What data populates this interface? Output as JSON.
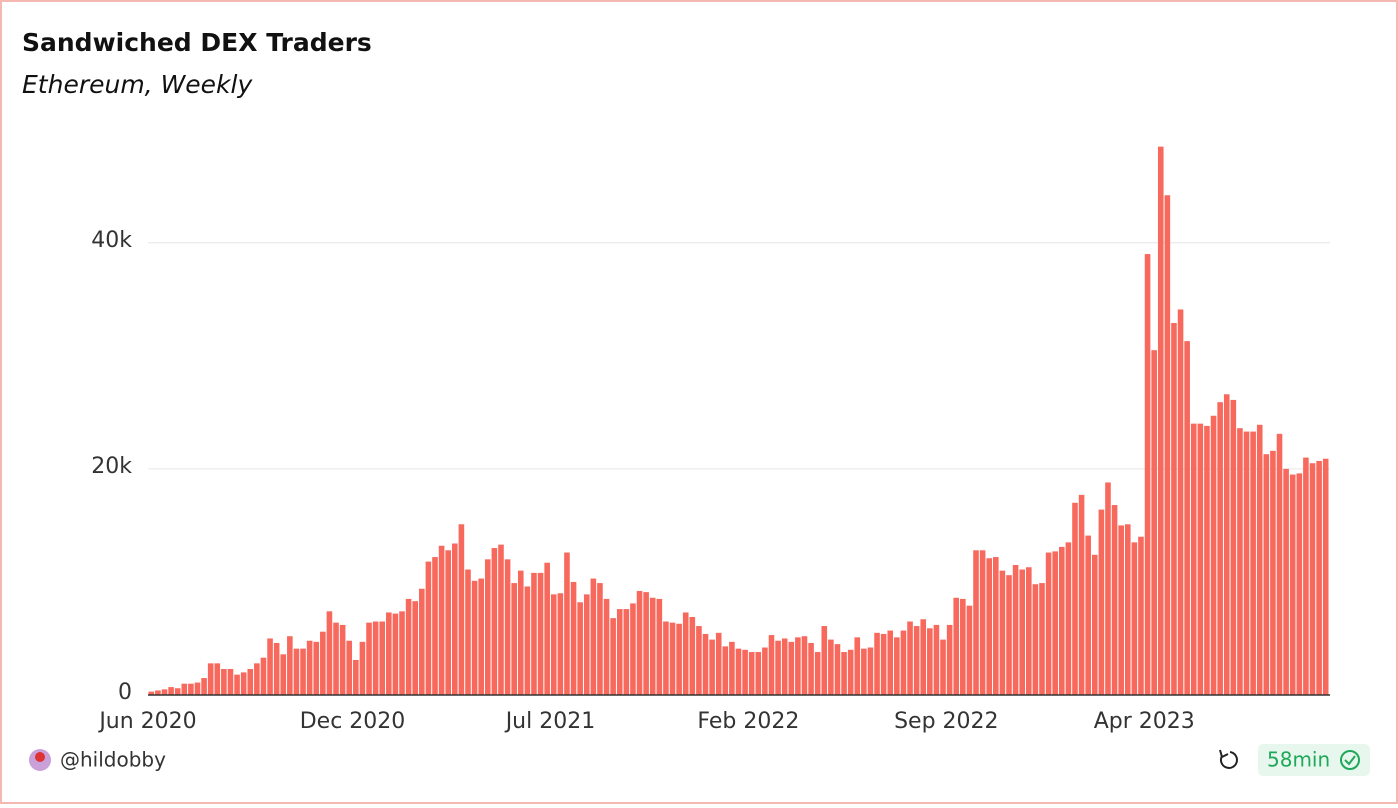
{
  "chart_data": {
    "type": "bar",
    "title": "Sandwiched DEX Traders",
    "subtitle": "Ethereum, Weekly",
    "categories": [
      "Jun 2020",
      null,
      null,
      null,
      null,
      null,
      null,
      null,
      null,
      null,
      null,
      null,
      null,
      null,
      null,
      null,
      null,
      null,
      null,
      null,
      null,
      null,
      null,
      null,
      null,
      null,
      null,
      null,
      null,
      null,
      null,
      "Dec 2020",
      null,
      null,
      null,
      null,
      null,
      null,
      null,
      null,
      null,
      null,
      null,
      null,
      null,
      null,
      null,
      null,
      null,
      null,
      null,
      null,
      null,
      null,
      null,
      null,
      null,
      null,
      null,
      null,
      null,
      "Jul 2021",
      null,
      null,
      null,
      null,
      null,
      null,
      null,
      null,
      null,
      null,
      null,
      null,
      null,
      null,
      null,
      null,
      null,
      null,
      null,
      null,
      null,
      null,
      null,
      null,
      null,
      null,
      null,
      null,
      null,
      "Feb 2022",
      null,
      null,
      null,
      null,
      null,
      null,
      null,
      null,
      null,
      null,
      null,
      null,
      null,
      null,
      null,
      null,
      null,
      null,
      null,
      null,
      null,
      null,
      null,
      null,
      null,
      null,
      null,
      null,
      null,
      "Sep 2022",
      null,
      null,
      null,
      null,
      null,
      null,
      null,
      null,
      null,
      null,
      null,
      null,
      null,
      null,
      null,
      null,
      null,
      null,
      null,
      null,
      null,
      null,
      null,
      null,
      null,
      null,
      null,
      null,
      null,
      "Apr 2023",
      null,
      null,
      null,
      null,
      null,
      null,
      null,
      null,
      null,
      null,
      null,
      null,
      null,
      null,
      null,
      null,
      null,
      null,
      null,
      null,
      null,
      null,
      null,
      null,
      null,
      null,
      null
    ],
    "values": [
      300,
      400,
      500,
      700,
      600,
      1000,
      1000,
      1100,
      1500,
      2800,
      2800,
      2300,
      2300,
      1800,
      2000,
      2300,
      2800,
      3300,
      5000,
      4600,
      3600,
      5200,
      4100,
      4100,
      4800,
      4700,
      5600,
      7400,
      6400,
      6200,
      4800,
      3100,
      4700,
      6400,
      6500,
      6500,
      7300,
      7200,
      7400,
      8500,
      8300,
      9400,
      11800,
      12200,
      13200,
      12800,
      13400,
      15100,
      11100,
      10100,
      10300,
      12000,
      13000,
      13300,
      12000,
      9900,
      11000,
      9600,
      10800,
      10800,
      11700,
      8900,
      9000,
      12600,
      10000,
      8200,
      8900,
      10300,
      9900,
      8500,
      6800,
      7600,
      7600,
      8100,
      9200,
      9100,
      8600,
      8500,
      6500,
      6400,
      6300,
      7300,
      6900,
      6100,
      5400,
      4900,
      5500,
      4300,
      4700,
      4100,
      4000,
      3800,
      3800,
      4200,
      5300,
      4800,
      5000,
      4700,
      5100,
      5200,
      4600,
      3800,
      6100,
      4900,
      4500,
      3800,
      4000,
      5100,
      4100,
      4200,
      5500,
      5400,
      5700,
      5100,
      5700,
      6500,
      6100,
      6700,
      5900,
      6200,
      4900,
      6200,
      8600,
      8500,
      7900,
      12800,
      12800,
      12100,
      12200,
      11000,
      10600,
      11500,
      11100,
      11300,
      9800,
      9900,
      12600,
      12700,
      13100,
      13500,
      17000,
      17700,
      14100,
      12400,
      16400,
      18800,
      16800,
      15000,
      15100,
      13500,
      14000,
      39000,
      30500,
      48500,
      44200,
      32900,
      34100,
      31300,
      24000,
      24000,
      23800,
      24700,
      25900,
      26600,
      26100,
      23600,
      23300,
      23300,
      23900,
      21300,
      21600,
      23100,
      20000,
      19500,
      19600,
      21000,
      20500,
      20700,
      20900
    ],
    "color": "#f8695d",
    "ylim": [
      0,
      49000
    ],
    "yticks": [
      0,
      {
        "value": 20000,
        "label": "20k"
      },
      {
        "value": 40000,
        "label": "40k"
      }
    ],
    "grid": true
  },
  "footer": {
    "author": "@hildobby",
    "refresh": "58min"
  }
}
